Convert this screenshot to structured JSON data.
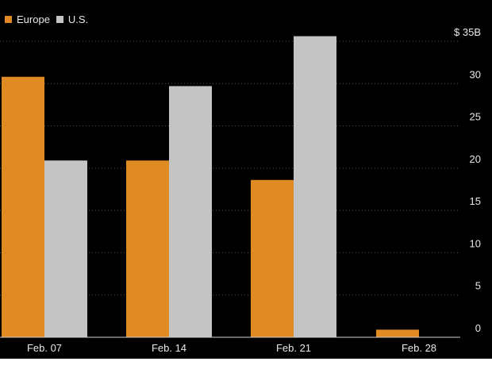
{
  "chart_data": {
    "type": "bar",
    "categories": [
      "Feb. 07",
      "Feb. 14",
      "Feb. 21",
      "Feb. 28"
    ],
    "series": [
      {
        "name": "Europe",
        "values": [
          30.8,
          20.9,
          18.6,
          0.9
        ],
        "color": "#e08a24"
      },
      {
        "name": "U.S.",
        "values": [
          20.9,
          29.7,
          35.6,
          0
        ],
        "color": "#c4c4c4"
      }
    ],
    "yticks": [
      "0",
      "5",
      "10",
      "15",
      "20",
      "25",
      "30",
      "$ 35B"
    ],
    "ytick_values": [
      0,
      5,
      10,
      15,
      20,
      25,
      30,
      35
    ],
    "ylim": [
      0,
      37
    ],
    "grid": true,
    "legend_position": "top-left",
    "colors": {
      "background": "#000000",
      "text": "#e8e8e8",
      "grid": "#5a5a5a",
      "baseline": "#d0d0d0"
    }
  }
}
